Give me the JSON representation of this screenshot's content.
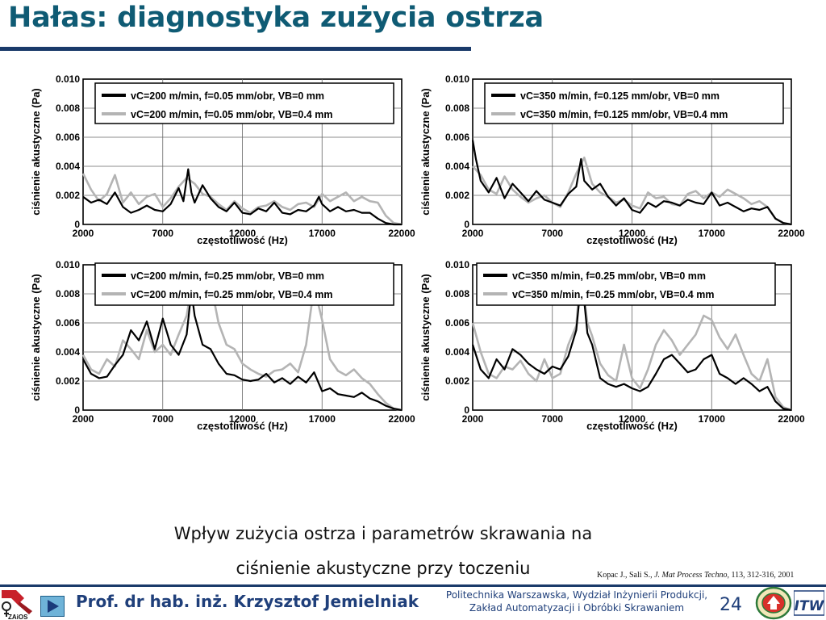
{
  "slide": {
    "title": "Hałas: diagnostyka zużycia ostrza",
    "caption_line1": "Wpływ zużycia ostrza i parametrów skrawania na",
    "caption_line2": "ciśnienie akustyczne przy toczeniu",
    "citation_authors": "Kopac J., Sali S., ",
    "citation_journal": "J. Mat Process Techno",
    "citation_rest": ", 113, 312-316, 2001",
    "author": "Prof. dr hab. inż. Krzysztof Jemielniak",
    "affiliation_line1": "Politechnika Warszawska, Wydział Inżynierii Produkcji,",
    "affiliation_line2": "Zakład Automatyzacji i Obróbki Skrawaniem",
    "page_number": "24",
    "logo_text": "ZAiOS",
    "logo_right_text": "ITW"
  },
  "colors": {
    "title": "#0f5b74",
    "rule": "#1a3a6a",
    "series_vb0": "#000000",
    "series_vb04": "#b4b4b4"
  },
  "chart_data": [
    {
      "type": "line",
      "xlabel": "częstotliwość (Hz)",
      "ylabel": "ciśnienie akustyczne (Pa)",
      "xlim": [
        2000,
        22000
      ],
      "ylim": [
        0,
        0.01
      ],
      "xticks": [
        "2000",
        "7000",
        "12000",
        "17000",
        "22000"
      ],
      "yticks": [
        "0",
        "0.002",
        "0.004",
        "0.006",
        "0.008",
        "0.010"
      ],
      "grid": true,
      "legend_position": "top",
      "legend_labels": [
        "vC=200 m/min, f=0.05 mm/obr, VB=0 mm",
        "vC=200 m/min, f=0.05 mm/obr, VB=0.4 mm"
      ],
      "series": [
        {
          "name": "vC=200 m/min, f=0.05 mm/obr, VB=0 mm",
          "color": "#000000",
          "x": [
            2000,
            2500,
            3000,
            3500,
            4000,
            4500,
            5000,
            5500,
            6000,
            6500,
            7000,
            7500,
            8000,
            8300,
            8600,
            8800,
            9000,
            9500,
            10000,
            10500,
            11000,
            11500,
            12000,
            12500,
            13000,
            13500,
            14000,
            14500,
            15000,
            15500,
            16000,
            16500,
            16800,
            17000,
            17500,
            18000,
            18500,
            19000,
            19500,
            20000,
            20500,
            21000,
            21500,
            22000
          ],
          "values": [
            0.0019,
            0.0015,
            0.0017,
            0.0014,
            0.0022,
            0.0012,
            0.0008,
            0.001,
            0.0013,
            0.001,
            0.0009,
            0.0014,
            0.0025,
            0.0016,
            0.0038,
            0.0022,
            0.0015,
            0.0027,
            0.0018,
            0.0012,
            0.0009,
            0.0015,
            0.0008,
            0.0007,
            0.0011,
            0.0009,
            0.0015,
            0.0008,
            0.0007,
            0.001,
            0.0009,
            0.0013,
            0.0019,
            0.0014,
            0.0009,
            0.0012,
            0.0009,
            0.001,
            0.0008,
            0.0008,
            0.0004,
            0.0001,
            0.0,
            0.0
          ]
        },
        {
          "name": "vC=200 m/min, f=0.05 mm/obr, VB=0.4 mm",
          "color": "#b4b4b4",
          "x": [
            2000,
            2500,
            3000,
            3500,
            4000,
            4500,
            5000,
            5500,
            6000,
            6500,
            7000,
            7500,
            8000,
            8500,
            9000,
            9500,
            10000,
            10500,
            11000,
            11500,
            12000,
            12500,
            13000,
            13500,
            14000,
            14500,
            15000,
            15500,
            16000,
            16500,
            17000,
            17500,
            18000,
            18500,
            19000,
            19500,
            20000,
            20500,
            21000,
            21500,
            22000
          ],
          "values": [
            0.0035,
            0.0024,
            0.0016,
            0.0021,
            0.0034,
            0.0015,
            0.0022,
            0.0014,
            0.0019,
            0.0021,
            0.0012,
            0.0018,
            0.0026,
            0.0032,
            0.0028,
            0.0021,
            0.0019,
            0.0014,
            0.001,
            0.0016,
            0.0011,
            0.0008,
            0.0012,
            0.0013,
            0.0016,
            0.0012,
            0.001,
            0.0014,
            0.0015,
            0.0012,
            0.0021,
            0.0016,
            0.0019,
            0.0022,
            0.0016,
            0.0019,
            0.0016,
            0.0015,
            0.0006,
            0.0001,
            0.0
          ]
        }
      ]
    },
    {
      "type": "line",
      "xlabel": "częstotliwość (Hz)",
      "ylabel": "ciśnienie akustyczne (Pa)",
      "xlim": [
        2000,
        22000
      ],
      "ylim": [
        0,
        0.01
      ],
      "xticks": [
        "2000",
        "7000",
        "12000",
        "17000",
        "22000"
      ],
      "yticks": [
        "0",
        "0.002",
        "0.004",
        "0.006",
        "0.008",
        "0.010"
      ],
      "grid": true,
      "legend_position": "top",
      "legend_labels": [
        "vC=350 m/min, f=0.125 mm/obr, VB=0 mm",
        "vC=350 m/min, f=0.125 mm/obr, VB=0.4 mm"
      ],
      "series": [
        {
          "name": "vC=350 m/min, f=0.125 mm/obr, VB=0 mm",
          "color": "#000000",
          "x": [
            2000,
            2200,
            2500,
            3000,
            3500,
            4000,
            4500,
            5000,
            5500,
            6000,
            6500,
            7000,
            7500,
            8000,
            8500,
            8800,
            9000,
            9500,
            10000,
            10500,
            11000,
            11500,
            12000,
            12500,
            13000,
            13500,
            14000,
            14500,
            15000,
            15500,
            16000,
            16500,
            17000,
            17500,
            18000,
            18500,
            19000,
            19500,
            20000,
            20500,
            21000,
            21500,
            22000
          ],
          "values": [
            0.0058,
            0.0045,
            0.003,
            0.0022,
            0.0032,
            0.0018,
            0.0028,
            0.0022,
            0.0016,
            0.0023,
            0.0017,
            0.0015,
            0.0013,
            0.0021,
            0.0026,
            0.0045,
            0.003,
            0.0024,
            0.0028,
            0.0019,
            0.0013,
            0.0018,
            0.001,
            0.0008,
            0.0015,
            0.0012,
            0.0016,
            0.0015,
            0.0013,
            0.0017,
            0.0015,
            0.0014,
            0.0022,
            0.0013,
            0.0015,
            0.0012,
            0.0009,
            0.0011,
            0.001,
            0.0012,
            0.0004,
            0.0001,
            0.0
          ]
        },
        {
          "name": "vC=350 m/min, f=0.125 mm/obr, VB=0.4 mm",
          "color": "#b4b4b4",
          "x": [
            2000,
            2500,
            3000,
            3500,
            4000,
            4500,
            5000,
            5500,
            6000,
            6500,
            7000,
            7500,
            8000,
            8500,
            9000,
            9500,
            10000,
            10500,
            11000,
            11500,
            12000,
            12500,
            13000,
            13500,
            14000,
            14500,
            15000,
            15500,
            16000,
            16500,
            17000,
            17500,
            18000,
            18500,
            19000,
            19500,
            20000,
            20500,
            21000,
            21500,
            22000
          ],
          "values": [
            0.004,
            0.0034,
            0.0024,
            0.0021,
            0.0033,
            0.0024,
            0.0019,
            0.0015,
            0.0018,
            0.002,
            0.0015,
            0.0012,
            0.0022,
            0.0035,
            0.0046,
            0.0028,
            0.0022,
            0.0019,
            0.0015,
            0.0017,
            0.0013,
            0.0011,
            0.0022,
            0.0018,
            0.0019,
            0.0014,
            0.0013,
            0.0021,
            0.0023,
            0.0018,
            0.0022,
            0.0019,
            0.0024,
            0.0021,
            0.0018,
            0.0014,
            0.0016,
            0.0012,
            0.0004,
            0.0001,
            0.0
          ]
        }
      ]
    },
    {
      "type": "line",
      "xlabel": "częstotliwość (Hz)",
      "ylabel": "ciśnienie akustyczne (Pa)",
      "xlim": [
        2000,
        22000
      ],
      "ylim": [
        0,
        0.01
      ],
      "xticks": [
        "2000",
        "7000",
        "12000",
        "17000",
        "22000"
      ],
      "yticks": [
        "0",
        "0.002",
        "0.004",
        "0.006",
        "0.008",
        "0.010"
      ],
      "grid": true,
      "legend_position": "top",
      "legend_labels": [
        "vC=200 m/min, f=0.25 mm/obr, VB=0 mm",
        "vC=200 m/min, f=0.25 mm/obr, VB=0.4 mm"
      ],
      "series": [
        {
          "name": "vC=200 m/min, f=0.25 mm/obr, VB=0 mm",
          "color": "#000000",
          "x": [
            2000,
            2500,
            3000,
            3500,
            4000,
            4500,
            5000,
            5500,
            6000,
            6500,
            7000,
            7500,
            8000,
            8500,
            8800,
            9000,
            9500,
            10000,
            10500,
            11000,
            11500,
            12000,
            12500,
            13000,
            13500,
            14000,
            14500,
            15000,
            15500,
            16000,
            16500,
            17000,
            17500,
            18000,
            18500,
            19000,
            19500,
            20000,
            20500,
            21000,
            21500,
            22000
          ],
          "values": [
            0.0035,
            0.0025,
            0.0022,
            0.0023,
            0.0031,
            0.0038,
            0.0055,
            0.0048,
            0.0061,
            0.0042,
            0.0063,
            0.0045,
            0.0038,
            0.0052,
            0.0082,
            0.0065,
            0.0045,
            0.0042,
            0.0032,
            0.0025,
            0.0024,
            0.0021,
            0.002,
            0.0021,
            0.0025,
            0.0019,
            0.0022,
            0.0018,
            0.0023,
            0.0019,
            0.0026,
            0.0013,
            0.0015,
            0.0011,
            0.001,
            0.0009,
            0.0012,
            0.0008,
            0.0006,
            0.0003,
            0.0001,
            0.0
          ]
        },
        {
          "name": "vC=200 m/min, f=0.25 mm/obr, VB=0.4 mm",
          "color": "#b4b4b4",
          "x": [
            2000,
            2500,
            3000,
            3500,
            4000,
            4500,
            5000,
            5500,
            6000,
            6500,
            7000,
            7500,
            8000,
            8500,
            9000,
            9500,
            10000,
            10500,
            11000,
            11500,
            12000,
            12500,
            13000,
            13500,
            14000,
            14500,
            15000,
            15500,
            16000,
            16500,
            17000,
            17500,
            18000,
            18500,
            19000,
            19500,
            20000,
            20500,
            21000,
            21500,
            22000
          ],
          "values": [
            0.0038,
            0.0028,
            0.0025,
            0.0035,
            0.003,
            0.0048,
            0.0042,
            0.0035,
            0.0055,
            0.004,
            0.0045,
            0.0038,
            0.0052,
            0.0065,
            0.0098,
            0.0085,
            0.0088,
            0.006,
            0.0045,
            0.0042,
            0.0032,
            0.0028,
            0.0025,
            0.0023,
            0.0027,
            0.0028,
            0.0032,
            0.0026,
            0.0045,
            0.0085,
            0.0062,
            0.0035,
            0.0027,
            0.0024,
            0.0028,
            0.0022,
            0.0018,
            0.0011,
            0.0005,
            0.0001,
            0.0
          ]
        }
      ]
    },
    {
      "type": "line",
      "xlabel": "częstotliwość (Hz)",
      "ylabel": "ciśnienie akustyczne (Pa)",
      "xlim": [
        2000,
        22000
      ],
      "ylim": [
        0,
        0.01
      ],
      "xticks": [
        "2000",
        "7000",
        "12000",
        "17000",
        "22000"
      ],
      "yticks": [
        "0",
        "0.002",
        "0.004",
        "0.006",
        "0.008",
        "0.010"
      ],
      "grid": true,
      "legend_position": "top",
      "legend_labels": [
        "vC=350 m/min, f=0.25 mm/obr, VB=0 mm",
        "vC=350 m/min, f=0.25 mm/obr, VB=0.4 mm"
      ],
      "series": [
        {
          "name": "vC=350 m/min, f=0.25 mm/obr, VB=0 mm",
          "color": "#000000",
          "x": [
            2000,
            2500,
            3000,
            3500,
            4000,
            4500,
            5000,
            5500,
            6000,
            6500,
            7000,
            7500,
            8000,
            8500,
            8800,
            9000,
            9200,
            9500,
            10000,
            10500,
            11000,
            11500,
            12000,
            12500,
            13000,
            13500,
            14000,
            14500,
            15000,
            15500,
            16000,
            16500,
            17000,
            17500,
            18000,
            18500,
            19000,
            19500,
            20000,
            20500,
            21000,
            21500,
            22000
          ],
          "values": [
            0.0045,
            0.0028,
            0.0022,
            0.0035,
            0.0028,
            0.0042,
            0.0038,
            0.0032,
            0.0028,
            0.0025,
            0.003,
            0.0028,
            0.0037,
            0.0055,
            0.0088,
            0.0075,
            0.0053,
            0.0045,
            0.0022,
            0.0018,
            0.0016,
            0.0018,
            0.0015,
            0.0013,
            0.0016,
            0.0025,
            0.0035,
            0.0038,
            0.0032,
            0.0026,
            0.0028,
            0.0035,
            0.0038,
            0.0025,
            0.0022,
            0.0018,
            0.0022,
            0.0018,
            0.0013,
            0.0016,
            0.0006,
            0.0001,
            0.0
          ]
        },
        {
          "name": "vC=350 m/min, f=0.25 mm/obr, VB=0.4 mm",
          "color": "#b4b4b4",
          "x": [
            2000,
            2500,
            3000,
            3500,
            4000,
            4500,
            5000,
            5500,
            6000,
            6500,
            7000,
            7500,
            8000,
            8500,
            8800,
            9000,
            9200,
            9500,
            10000,
            10500,
            11000,
            11500,
            12000,
            12500,
            13000,
            13500,
            14000,
            14500,
            15000,
            15500,
            16000,
            16500,
            17000,
            17500,
            18000,
            18500,
            19000,
            19500,
            20000,
            20500,
            21000,
            21500,
            22000
          ],
          "values": [
            0.006,
            0.004,
            0.0025,
            0.0022,
            0.003,
            0.0028,
            0.0034,
            0.0025,
            0.002,
            0.0035,
            0.0022,
            0.0025,
            0.0045,
            0.0058,
            0.0099,
            0.0078,
            0.006,
            0.0051,
            0.0032,
            0.0024,
            0.002,
            0.0045,
            0.0022,
            0.0015,
            0.0028,
            0.0045,
            0.0055,
            0.0048,
            0.0038,
            0.0045,
            0.0052,
            0.0065,
            0.0062,
            0.005,
            0.0042,
            0.0052,
            0.0038,
            0.0025,
            0.002,
            0.0035,
            0.0009,
            0.0002,
            0.0
          ]
        }
      ]
    }
  ]
}
